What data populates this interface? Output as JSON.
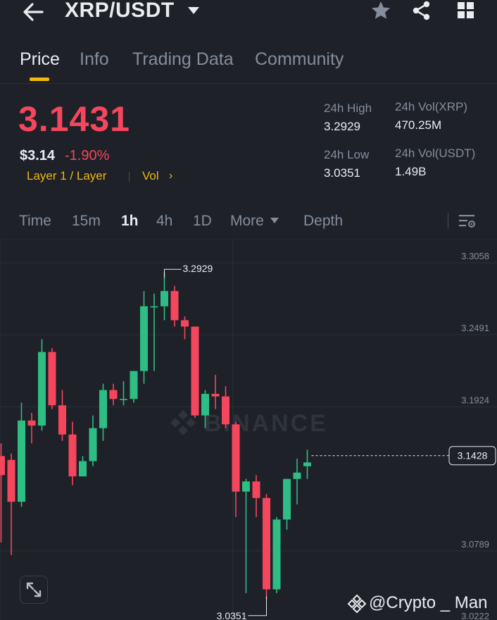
{
  "header": {
    "pair": "XRP/USDT",
    "icons": [
      "back-arrow-icon",
      "dropdown-caret-icon",
      "star-icon",
      "share-icon",
      "grid-icon"
    ]
  },
  "tabs": [
    {
      "label": "Price",
      "active": true
    },
    {
      "label": "Info"
    },
    {
      "label": "Trading Data"
    },
    {
      "label": "Community"
    }
  ],
  "price": {
    "last": "3.1431",
    "usd": "$3.14",
    "change": "-1.90%",
    "tag_layer": "Layer 1 / Layer",
    "tag_vol": "Vol",
    "tag_chevron": "›"
  },
  "stats": {
    "high_label": "24h High",
    "high_value": "3.2929",
    "low_label": "24h Low",
    "low_value": "3.0351",
    "vol_base_label": "24h Vol(XRP)",
    "vol_base_value": "470.25M",
    "vol_quote_label": "24h Vol(USDT)",
    "vol_quote_value": "1.49B"
  },
  "timeframes": {
    "time": "Time",
    "m15": "15m",
    "h1": "1h",
    "h4": "4h",
    "d1": "1D",
    "more": "More",
    "depth": "Depth",
    "active": "1h"
  },
  "chart_data": {
    "type": "candlestick",
    "y_ticks": [
      "3.3058",
      "3.2491",
      "3.1924",
      "3.0789",
      "3.0222"
    ],
    "current_price_label": "3.1428",
    "current_price": 3.1428,
    "high_marker": "3.2929",
    "high_value": 3.2929,
    "low_marker": "3.0351",
    "low_value": 3.0351,
    "ylim": [
      3.0222,
      3.3058
    ],
    "candles": [
      {
        "o": 3.148,
        "h": 3.158,
        "l": 3.08,
        "c": 3.133
      },
      {
        "o": 3.145,
        "h": 3.15,
        "l": 3.07,
        "c": 3.112
      },
      {
        "o": 3.112,
        "h": 3.19,
        "l": 3.108,
        "c": 3.176
      },
      {
        "o": 3.176,
        "h": 3.182,
        "l": 3.158,
        "c": 3.172
      },
      {
        "o": 3.172,
        "h": 3.24,
        "l": 3.168,
        "c": 3.23
      },
      {
        "o": 3.23,
        "h": 3.233,
        "l": 3.185,
        "c": 3.188
      },
      {
        "o": 3.188,
        "h": 3.2,
        "l": 3.16,
        "c": 3.165
      },
      {
        "o": 3.165,
        "h": 3.175,
        "l": 3.125,
        "c": 3.132
      },
      {
        "o": 3.132,
        "h": 3.148,
        "l": 3.132,
        "c": 3.144
      },
      {
        "o": 3.144,
        "h": 3.18,
        "l": 3.14,
        "c": 3.17
      },
      {
        "o": 3.17,
        "h": 3.205,
        "l": 3.16,
        "c": 3.2
      },
      {
        "o": 3.2,
        "h": 3.205,
        "l": 3.188,
        "c": 3.193
      },
      {
        "o": 3.193,
        "h": 3.207,
        "l": 3.188,
        "c": 3.193
      },
      {
        "o": 3.193,
        "h": 3.215,
        "l": 3.19,
        "c": 3.215
      },
      {
        "o": 3.215,
        "h": 3.278,
        "l": 3.205,
        "c": 3.266
      },
      {
        "o": 3.266,
        "h": 3.276,
        "l": 3.215,
        "c": 3.266
      },
      {
        "o": 3.266,
        "h": 3.2929,
        "l": 3.255,
        "c": 3.278
      },
      {
        "o": 3.278,
        "h": 3.282,
        "l": 3.25,
        "c": 3.255
      },
      {
        "o": 3.255,
        "h": 3.258,
        "l": 3.24,
        "c": 3.25
      },
      {
        "o": 3.25,
        "h": 3.25,
        "l": 3.178,
        "c": 3.18
      },
      {
        "o": 3.18,
        "h": 3.2,
        "l": 3.17,
        "c": 3.197
      },
      {
        "o": 3.197,
        "h": 3.212,
        "l": 3.185,
        "c": 3.195
      },
      {
        "o": 3.195,
        "h": 3.203,
        "l": 3.17,
        "c": 3.173
      },
      {
        "o": 3.173,
        "h": 3.175,
        "l": 3.1,
        "c": 3.12
      },
      {
        "o": 3.12,
        "h": 3.13,
        "l": 3.04,
        "c": 3.128
      },
      {
        "o": 3.128,
        "h": 3.133,
        "l": 3.1,
        "c": 3.115
      },
      {
        "o": 3.115,
        "h": 3.118,
        "l": 3.0351,
        "c": 3.043
      },
      {
        "o": 3.043,
        "h": 3.1,
        "l": 3.04,
        "c": 3.098
      },
      {
        "o": 3.098,
        "h": 3.13,
        "l": 3.09,
        "c": 3.13
      },
      {
        "o": 3.13,
        "h": 3.146,
        "l": 3.11,
        "c": 3.135
      },
      {
        "o": 3.14,
        "h": 3.153,
        "l": 3.13,
        "c": 3.143
      }
    ]
  },
  "watermark": {
    "brand": "BINANCE",
    "author": "@Crypto _ Man"
  },
  "colors": {
    "up": "#2ebd85",
    "down": "#f6465d",
    "accent": "#f0b90b",
    "bg": "#1e2128"
  }
}
